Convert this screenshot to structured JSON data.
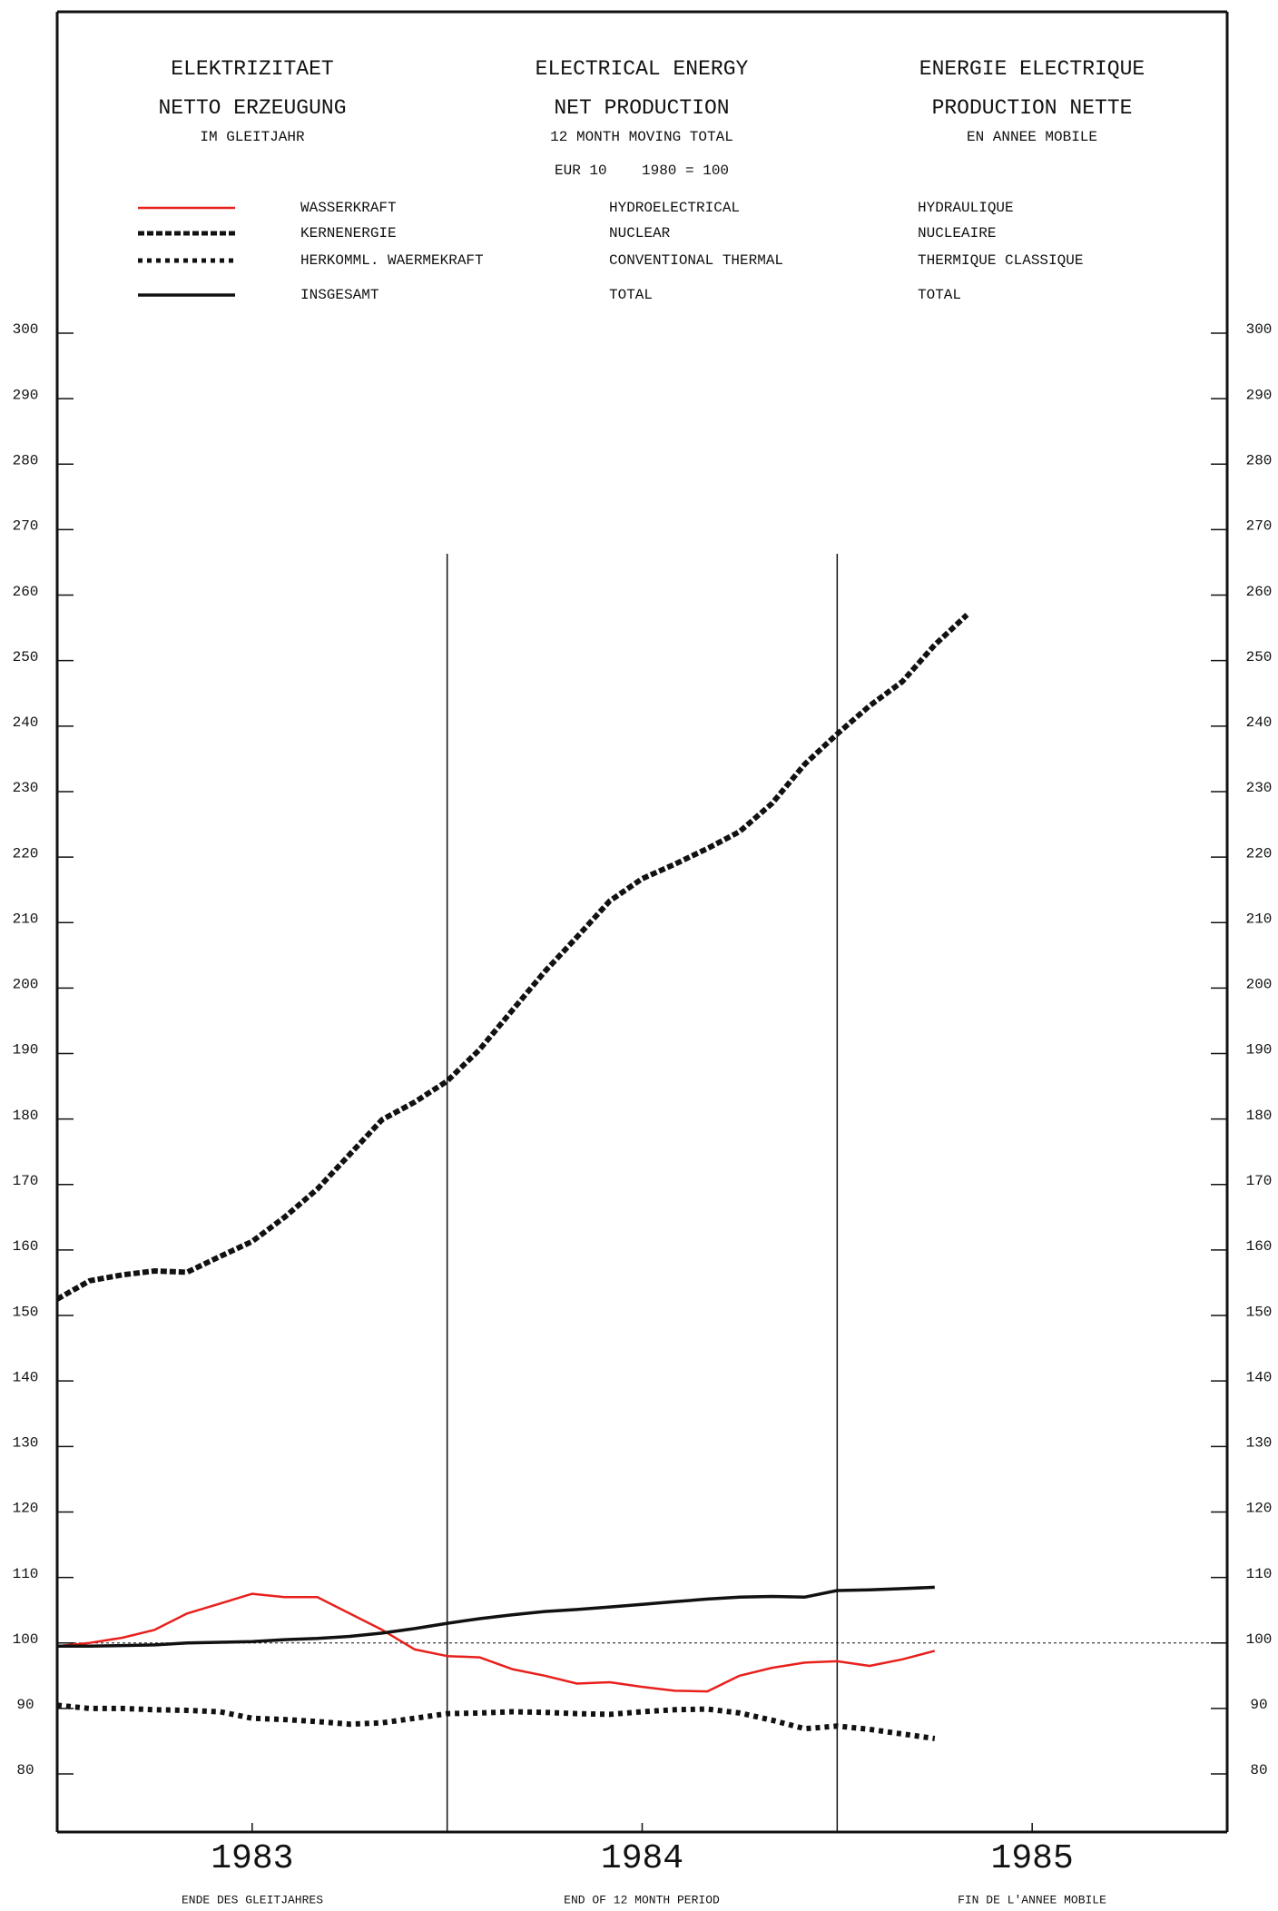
{
  "chart_data": {
    "type": "line",
    "title": [
      "ELEKTRIZITAET",
      "ELECTRICAL ENERGY",
      "ENERGIE ELECTRIQUE"
    ],
    "subtitle": [
      "NETTO ERZEUGUNG",
      "NET PRODUCTION",
      "PRODUCTION NETTE"
    ],
    "subtitle2": [
      "IM GLEITJAHR",
      "12 MONTH MOVING TOTAL",
      "EN ANNEE MOBILE"
    ],
    "note": "EUR 10    1980 = 100",
    "x_label": [
      "ENDE DES GLEITJAHRES",
      "END OF 12 MONTH PERIOD",
      "FIN DE L'ANNEE MOBILE"
    ],
    "x": [
      1983,
      1983.083,
      1983.167,
      1983.25,
      1983.333,
      1983.417,
      1983.5,
      1983.583,
      1983.667,
      1983.75,
      1983.833,
      1983.917,
      1984,
      1984.083,
      1984.167,
      1984.25,
      1984.333,
      1984.417,
      1984.5,
      1984.583,
      1984.667,
      1984.75,
      1984.833,
      1984.917,
      1985,
      1985.083,
      1985.167,
      1985.25,
      1985.333
    ],
    "series": [
      {
        "name": [
          "WASSERKRAFT",
          "HYDROELECTRICAL",
          "HYDRAULIQUE"
        ],
        "color": "#e8201c",
        "style": "solid",
        "width": 2.5,
        "values": [
          99.5,
          100,
          100.8,
          102,
          104.5,
          106,
          107.5,
          107,
          107,
          104.5,
          102,
          99,
          98,
          97.8,
          96,
          95,
          93.8,
          94,
          93.3,
          92.7,
          92.6,
          95,
          96.2,
          97,
          97.2,
          96.5,
          97.5,
          98.8,
          null
        ]
      },
      {
        "name": [
          "KERNENERGIE",
          "NUCLEAR",
          "NUCLEAIRE"
        ],
        "color": "#111111",
        "style": "dashed",
        "width": 6,
        "values": [
          152.5,
          155.3,
          156.2,
          156.8,
          156.6,
          159,
          161.3,
          165,
          169.3,
          174.6,
          179.9,
          182.6,
          185.8,
          190.6,
          196.6,
          202.5,
          207.8,
          213.3,
          216.7,
          218.9,
          221.3,
          223.9,
          228.2,
          234.2,
          238.8,
          243.1,
          246.8,
          252.4,
          257
        ]
      },
      {
        "name": [
          "HERKOMML. WAERMEKRAFT",
          "CONVENTIONAL THERMAL",
          "THERMIQUE CLASSIQUE"
        ],
        "color": "#111111",
        "style": "dotted",
        "width": 6,
        "values": [
          90.5,
          90,
          90,
          89.8,
          89.7,
          89.5,
          88.5,
          88.3,
          88,
          87.6,
          87.8,
          88.5,
          89.2,
          89.3,
          89.5,
          89.4,
          89.2,
          89.1,
          89.5,
          89.8,
          89.9,
          89.3,
          88.2,
          86.9,
          87.3,
          86.8,
          86.1,
          85.4,
          null
        ]
      },
      {
        "name": [
          "INSGESAMT",
          "TOTAL",
          "TOTAL"
        ],
        "color": "#111111",
        "style": "solid",
        "width": 3.5,
        "values": [
          99.5,
          99.5,
          99.6,
          99.7,
          100,
          100.1,
          100.2,
          100.5,
          100.7,
          101,
          101.5,
          102.2,
          103,
          103.7,
          104.3,
          104.8,
          105.1,
          105.5,
          105.9,
          106.3,
          106.7,
          107,
          107.1,
          107,
          108,
          108.1,
          108.3,
          108.5,
          null
        ]
      }
    ],
    "xlim": [
      1983,
      1986
    ],
    "xticks": [
      {
        "value": 1983.5,
        "label": "1983"
      },
      {
        "value": 1984.5,
        "label": "1984"
      },
      {
        "value": 1985.5,
        "label": "1985"
      }
    ],
    "vlines": [
      1984,
      1985
    ],
    "ylim": [
      80,
      300
    ],
    "yticks": [
      80,
      90,
      100,
      110,
      120,
      130,
      140,
      150,
      160,
      170,
      180,
      190,
      200,
      210,
      220,
      230,
      240,
      250,
      260,
      270,
      280,
      290,
      300
    ],
    "refline": 100
  }
}
